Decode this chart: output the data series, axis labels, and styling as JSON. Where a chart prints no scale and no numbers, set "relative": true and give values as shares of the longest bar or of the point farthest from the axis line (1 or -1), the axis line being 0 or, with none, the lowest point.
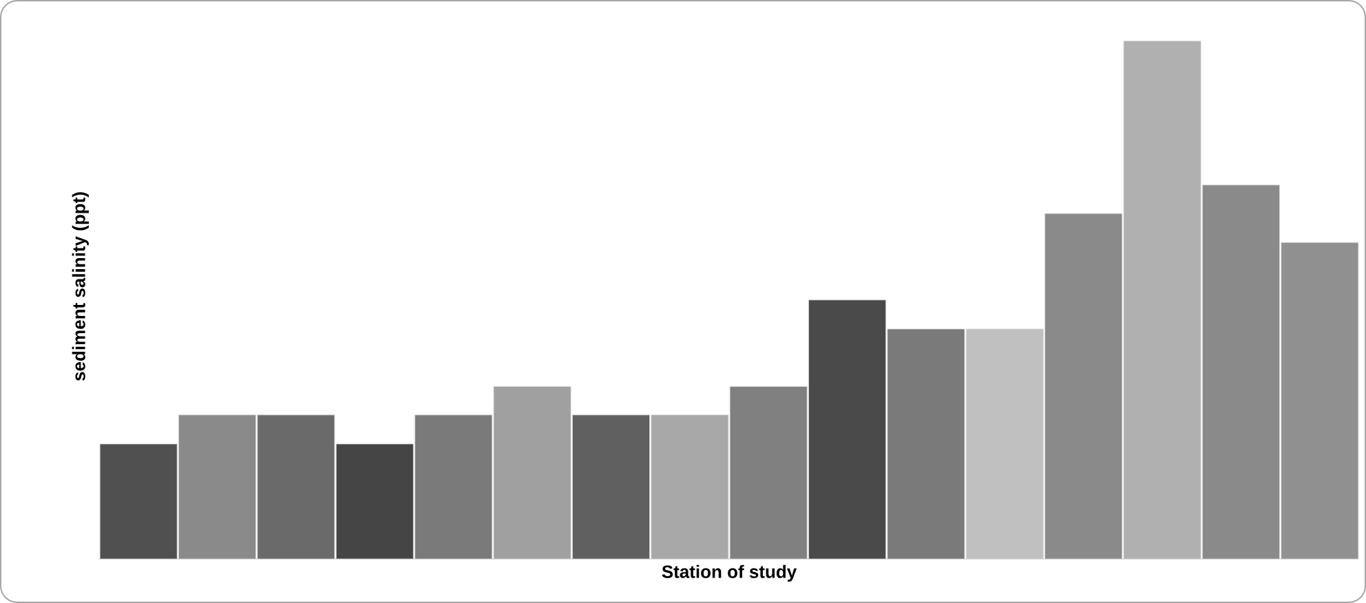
{
  "chart_data": {
    "type": "bar",
    "relative": true,
    "xlabel": "Station of study",
    "ylabel": "sediment salinity (ppt)",
    "categories": [
      null,
      null,
      null,
      null,
      null,
      null,
      null,
      null,
      null,
      null,
      null,
      null,
      null,
      null,
      null,
      null
    ],
    "values": [
      0.222,
      0.278,
      0.278,
      0.222,
      0.278,
      0.333,
      0.278,
      0.278,
      0.333,
      0.5,
      0.444,
      0.444,
      0.667,
      1,
      0.722,
      0.611
    ],
    "colors": [
      "#505050",
      "#8a8a8a",
      "#6a6a6a",
      "#454545",
      "#7a7a7a",
      "#a0a0a0",
      "#606060",
      "#a8a8a8",
      "#808080",
      "#4a4a4a",
      "#7a7a7a",
      "#c0c0c0",
      "#8a8a8a",
      "#b0b0b0",
      "#8a8a8a",
      "#909090"
    ]
  }
}
